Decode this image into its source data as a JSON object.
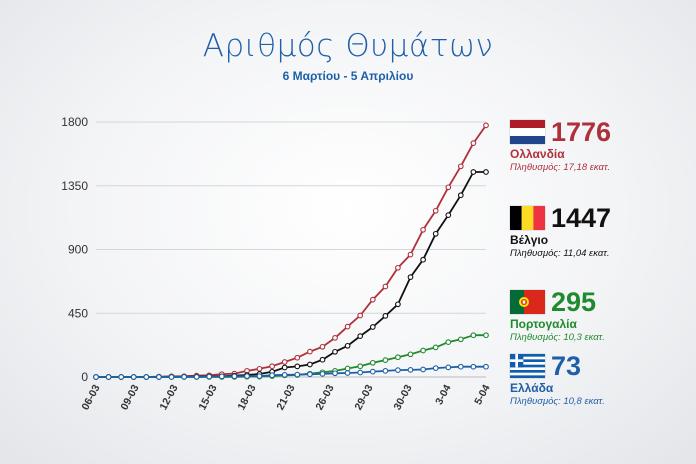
{
  "chart_data": {
    "type": "line",
    "title": "Αριθμός Θυμάτων",
    "subtitle": "6 Μαρτίου - 5 Απριλίου",
    "x_tick_labels": [
      "06-03",
      "09-03",
      "12-03",
      "15-03",
      "18-03",
      "21-03",
      "26-03",
      "29-03",
      "30-03",
      "3-04",
      "5-04"
    ],
    "y_ticks": [
      0,
      450,
      900,
      1350,
      1800
    ],
    "ylim": [
      0,
      1800
    ],
    "grid": true,
    "series": [
      {
        "name": "Ολλανδία",
        "color": "#b0303a",
        "values": [
          0,
          0,
          0,
          0,
          0,
          3,
          4,
          5,
          10,
          12,
          20,
          24,
          43,
          58,
          76,
          106,
          136,
          179,
          213,
          276,
          356,
          434,
          546,
          639,
          771,
          864,
          1039,
          1173,
          1339,
          1487,
          1651,
          1776
        ]
      },
      {
        "name": "Βέλγιο",
        "color": "#111111",
        "values": [
          0,
          0,
          0,
          0,
          0,
          0,
          2,
          3,
          3,
          4,
          5,
          10,
          14,
          21,
          37,
          67,
          75,
          88,
          122,
          178,
          220,
          289,
          353,
          431,
          513,
          705,
          828,
          1011,
          1143,
          1283,
          1447,
          1447
        ]
      },
      {
        "name": "Πορτογαλία",
        "color": "#1f8a2e",
        "values": [
          0,
          0,
          0,
          0,
          0,
          0,
          0,
          0,
          0,
          0,
          0,
          1,
          2,
          3,
          6,
          12,
          14,
          23,
          33,
          43,
          60,
          76,
          100,
          119,
          140,
          160,
          187,
          209,
          246,
          266,
          295,
          295
        ]
      },
      {
        "name": "Ελλάδα",
        "color": "#1f5fa8",
        "values": [
          0,
          0,
          0,
          0,
          0,
          0,
          0,
          1,
          1,
          3,
          4,
          5,
          6,
          6,
          13,
          15,
          17,
          20,
          22,
          26,
          28,
          32,
          38,
          43,
          49,
          50,
          53,
          63,
          68,
          73,
          73,
          73
        ]
      }
    ]
  },
  "legend": [
    {
      "country": "Ολλανδία",
      "value": "1776",
      "population": "Πληθυσμός: 17,18 εκατ.",
      "flag": "nl-flag-icon"
    },
    {
      "country": "Βέλγιο",
      "value": "1447",
      "population": "Πληθυσμός: 11,04 εκατ.",
      "flag": "be-flag-icon"
    },
    {
      "country": "Πορτογαλία",
      "value": "295",
      "population": "Πληθυσμός: 10,3 εκατ.",
      "flag": "pt-flag-icon"
    },
    {
      "country": "Ελλάδα",
      "value": "73",
      "population": "Πληθυσμός: 10,8 εκατ.",
      "flag": "gr-flag-icon"
    }
  ]
}
